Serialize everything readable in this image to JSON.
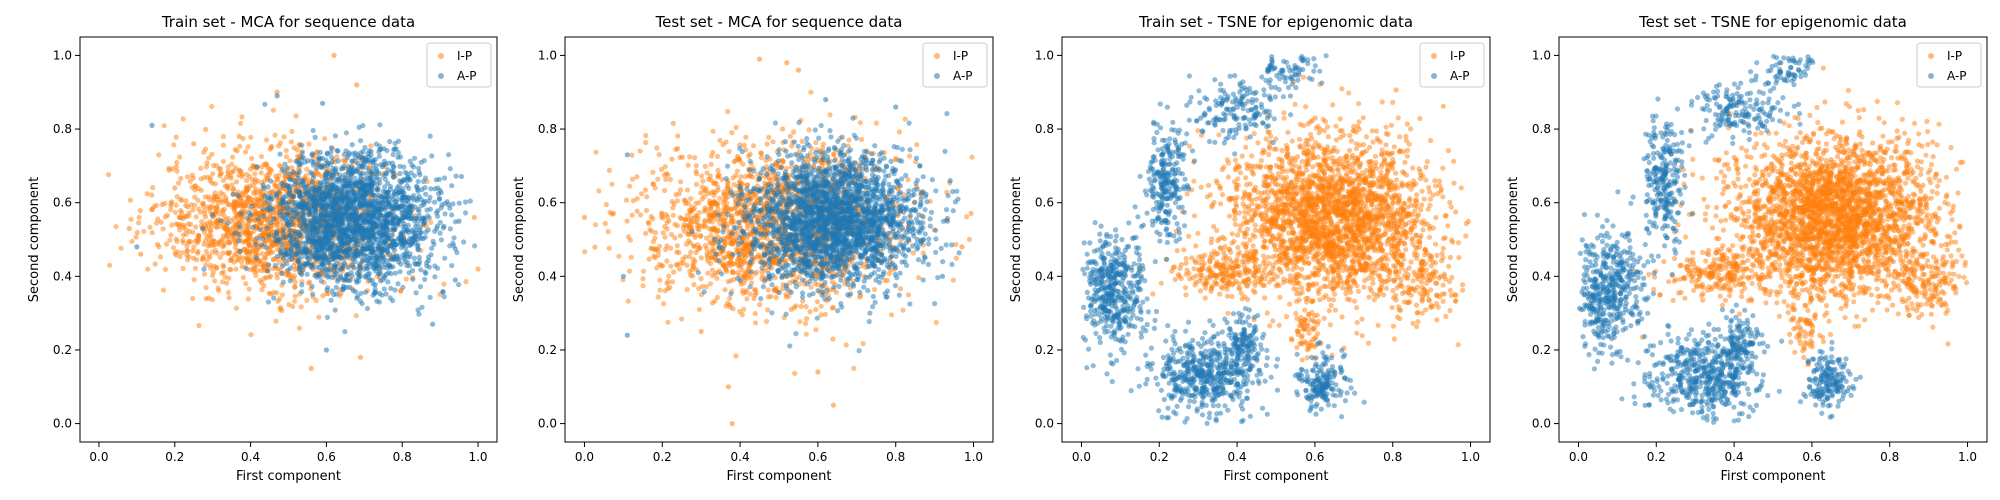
{
  "chart_data": [
    {
      "type": "scatter",
      "title": "Train set - MCA for sequence data",
      "xlabel": "First component",
      "ylabel": "Second component",
      "xlim": [
        -0.05,
        1.05
      ],
      "ylim": [
        -0.05,
        1.05
      ],
      "xticks": [
        "0.0",
        "0.2",
        "0.4",
        "0.6",
        "0.8",
        "1.0"
      ],
      "yticks": [
        "0.0",
        "0.2",
        "0.4",
        "0.6",
        "0.8",
        "1.0"
      ],
      "grid": false,
      "legend": "top-right",
      "series": [
        {
          "name": "I-P",
          "color": "#ff7f0e",
          "cluster": {
            "cx": 0.46,
            "cy": 0.55,
            "sx": 0.15,
            "sy": 0.095,
            "n": 1500
          },
          "outliers": [
            [
              0.62,
              1.0
            ],
            [
              0.47,
              0.9
            ],
            [
              0.68,
              0.92
            ],
            [
              0.56,
              0.15
            ],
            [
              0.69,
              0.18
            ],
            [
              0.08,
              0.53
            ],
            [
              0.11,
              0.46
            ],
            [
              0.99,
              0.56
            ],
            [
              0.37,
              0.78
            ],
            [
              0.25,
              0.76
            ],
            [
              0.2,
              0.64
            ]
          ]
        },
        {
          "name": "A-P",
          "color": "#1f77b4",
          "cluster": {
            "cx": 0.67,
            "cy": 0.55,
            "sx": 0.11,
            "sy": 0.09,
            "n": 2200
          },
          "outliers": [
            [
              0.14,
              0.81
            ],
            [
              0.47,
              0.89
            ],
            [
              0.59,
              0.87
            ],
            [
              0.94,
              0.39
            ],
            [
              0.88,
              0.27
            ],
            [
              0.6,
              0.2
            ],
            [
              0.95,
              0.55
            ],
            [
              0.1,
              0.48
            ]
          ]
        }
      ]
    },
    {
      "type": "scatter",
      "title": "Test set - MCA for sequence data",
      "xlabel": "First component",
      "ylabel": "Second component",
      "xlim": [
        -0.05,
        1.05
      ],
      "ylim": [
        -0.05,
        1.05
      ],
      "xticks": [
        "0.0",
        "0.2",
        "0.4",
        "0.6",
        "0.8",
        "1.0"
      ],
      "yticks": [
        "0.0",
        "0.2",
        "0.4",
        "0.6",
        "0.8",
        "1.0"
      ],
      "grid": false,
      "legend": "top-right",
      "series": [
        {
          "name": "I-P",
          "color": "#ff7f0e",
          "cluster": {
            "cx": 0.48,
            "cy": 0.54,
            "sx": 0.17,
            "sy": 0.11,
            "n": 1700
          },
          "outliers": [
            [
              0.45,
              0.99
            ],
            [
              0.52,
              0.98
            ],
            [
              0.38,
              0.0
            ],
            [
              0.64,
              0.05
            ],
            [
              0.37,
              0.1
            ],
            [
              0.0,
              0.56
            ],
            [
              0.97,
              0.48
            ],
            [
              0.55,
              0.96
            ],
            [
              0.6,
              0.14
            ],
            [
              0.3,
              0.25
            ]
          ]
        },
        {
          "name": "A-P",
          "color": "#1f77b4",
          "cluster": {
            "cx": 0.64,
            "cy": 0.55,
            "sx": 0.11,
            "sy": 0.09,
            "n": 2300
          },
          "outliers": [
            [
              0.11,
              0.24
            ],
            [
              0.11,
              0.73
            ],
            [
              0.62,
              0.88
            ],
            [
              0.92,
              0.4
            ],
            [
              0.94,
              0.66
            ],
            [
              0.1,
              0.4
            ],
            [
              0.8,
              0.86
            ]
          ]
        }
      ]
    },
    {
      "type": "scatter",
      "title": "Train set - TSNE for epigenomic data",
      "xlabel": "First component",
      "ylabel": "Second component",
      "xlim": [
        -0.05,
        1.05
      ],
      "ylim": [
        -0.05,
        1.05
      ],
      "xticks": [
        "0.0",
        "0.2",
        "0.4",
        "0.6",
        "0.8",
        "1.0"
      ],
      "yticks": [
        "0.0",
        "0.2",
        "0.4",
        "0.6",
        "0.8",
        "1.0"
      ],
      "grid": false,
      "legend": "top-right",
      "series": [
        {
          "name": "I-P",
          "color": "#ff7f0e",
          "clusters": [
            {
              "cx": 0.64,
              "cy": 0.56,
              "sx": 0.13,
              "sy": 0.11,
              "n": 2400
            },
            {
              "cx": 0.36,
              "cy": 0.42,
              "sx": 0.07,
              "sy": 0.035,
              "n": 220
            },
            {
              "cx": 0.88,
              "cy": 0.38,
              "sx": 0.05,
              "sy": 0.05,
              "n": 140
            },
            {
              "cx": 0.58,
              "cy": 0.26,
              "sx": 0.02,
              "sy": 0.04,
              "n": 60
            }
          ]
        },
        {
          "name": "A-P",
          "color": "#1f77b4",
          "clusters": [
            {
              "cx": 0.4,
              "cy": 0.85,
              "sx": 0.06,
              "sy": 0.04,
              "n": 160
            },
            {
              "cx": 0.22,
              "cy": 0.66,
              "sx": 0.025,
              "sy": 0.08,
              "n": 240
            },
            {
              "cx": 0.08,
              "cy": 0.36,
              "sx": 0.045,
              "sy": 0.08,
              "n": 450
            },
            {
              "cx": 0.32,
              "cy": 0.13,
              "sx": 0.07,
              "sy": 0.055,
              "n": 480
            },
            {
              "cx": 0.42,
              "cy": 0.22,
              "sx": 0.025,
              "sy": 0.04,
              "n": 120
            },
            {
              "cx": 0.62,
              "cy": 0.11,
              "sx": 0.03,
              "sy": 0.04,
              "n": 170
            },
            {
              "cx": 0.53,
              "cy": 0.96,
              "sx": 0.035,
              "sy": 0.025,
              "n": 70
            }
          ]
        }
      ]
    },
    {
      "type": "scatter",
      "title": "Test set - TSNE for epigenomic data",
      "xlabel": "First component",
      "ylabel": "Second component",
      "xlim": [
        -0.05,
        1.05
      ],
      "ylim": [
        -0.05,
        1.05
      ],
      "xticks": [
        "0.0",
        "0.2",
        "0.4",
        "0.6",
        "0.8",
        "1.0"
      ],
      "yticks": [
        "0.0",
        "0.2",
        "0.4",
        "0.6",
        "0.8",
        "1.0"
      ],
      "grid": false,
      "legend": "top-right",
      "series": [
        {
          "name": "I-P",
          "color": "#ff7f0e",
          "clusters": [
            {
              "cx": 0.66,
              "cy": 0.56,
              "sx": 0.13,
              "sy": 0.11,
              "n": 2700
            },
            {
              "cx": 0.36,
              "cy": 0.41,
              "sx": 0.07,
              "sy": 0.035,
              "n": 220
            },
            {
              "cx": 0.9,
              "cy": 0.37,
              "sx": 0.05,
              "sy": 0.05,
              "n": 150
            },
            {
              "cx": 0.58,
              "cy": 0.25,
              "sx": 0.02,
              "sy": 0.04,
              "n": 60
            }
          ]
        },
        {
          "name": "A-P",
          "color": "#1f77b4",
          "clusters": [
            {
              "cx": 0.4,
              "cy": 0.85,
              "sx": 0.06,
              "sy": 0.04,
              "n": 160
            },
            {
              "cx": 0.22,
              "cy": 0.66,
              "sx": 0.025,
              "sy": 0.08,
              "n": 240
            },
            {
              "cx": 0.08,
              "cy": 0.36,
              "sx": 0.045,
              "sy": 0.08,
              "n": 450
            },
            {
              "cx": 0.32,
              "cy": 0.13,
              "sx": 0.07,
              "sy": 0.055,
              "n": 480
            },
            {
              "cx": 0.42,
              "cy": 0.22,
              "sx": 0.025,
              "sy": 0.04,
              "n": 120
            },
            {
              "cx": 0.64,
              "cy": 0.11,
              "sx": 0.03,
              "sy": 0.04,
              "n": 170
            },
            {
              "cx": 0.54,
              "cy": 0.96,
              "sx": 0.035,
              "sy": 0.025,
              "n": 70
            }
          ]
        }
      ]
    }
  ]
}
